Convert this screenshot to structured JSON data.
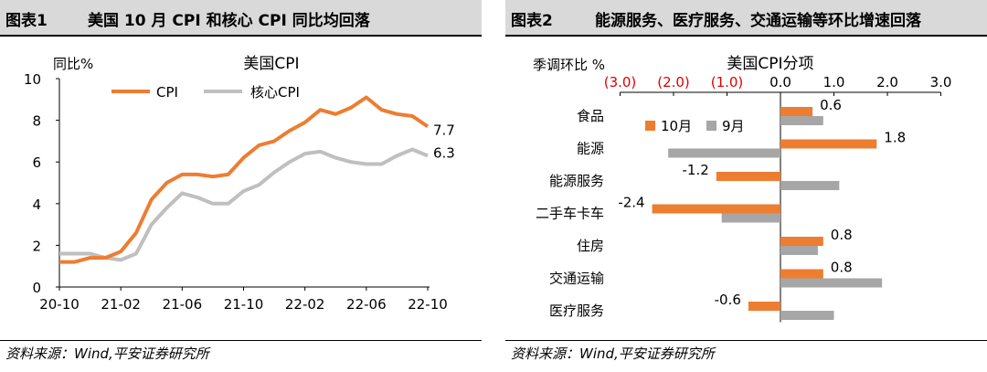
{
  "left": {
    "figure_num": "图表1",
    "title": "美国 10 月 CPI 和核心 CPI 同比均回落",
    "source": "资料来源：Wind,平安证券研究所"
  },
  "right": {
    "figure_num": "图表2",
    "title": "能源服务、医疗服务、交通运输等环比增速回落",
    "source": "资料来源：Wind,平安证券研究所"
  },
  "chart_data": [
    {
      "type": "line",
      "title": "美国CPI",
      "ylabel": "同比%",
      "xlabel": "",
      "ylim": [
        0,
        10
      ],
      "yticks": [
        0,
        2,
        4,
        6,
        8,
        10
      ],
      "xtick_labels": [
        "20-10",
        "21-02",
        "21-06",
        "21-10",
        "22-02",
        "22-06",
        "22-10"
      ],
      "xtick_indices": [
        0,
        4,
        8,
        12,
        16,
        20,
        24
      ],
      "grid": false,
      "legend_position": "top",
      "x": [
        "20-10",
        "20-11",
        "20-12",
        "21-01",
        "21-02",
        "21-03",
        "21-04",
        "21-05",
        "21-06",
        "21-07",
        "21-08",
        "21-09",
        "21-10",
        "21-11",
        "21-12",
        "22-01",
        "22-02",
        "22-03",
        "22-04",
        "22-05",
        "22-06",
        "22-07",
        "22-08",
        "22-09",
        "22-10"
      ],
      "series": [
        {
          "name": "CPI",
          "color": "#ed7d31",
          "end_label": "7.7",
          "values": [
            1.2,
            1.2,
            1.4,
            1.4,
            1.7,
            2.6,
            4.2,
            5.0,
            5.4,
            5.4,
            5.3,
            5.4,
            6.2,
            6.8,
            7.0,
            7.5,
            7.9,
            8.5,
            8.3,
            8.6,
            9.1,
            8.5,
            8.3,
            8.2,
            7.7
          ]
        },
        {
          "name": "核心CPI",
          "color": "#bfbfbf",
          "end_label": "6.3",
          "values": [
            1.6,
            1.6,
            1.6,
            1.4,
            1.3,
            1.6,
            3.0,
            3.8,
            4.5,
            4.3,
            4.0,
            4.0,
            4.6,
            4.9,
            5.5,
            6.0,
            6.4,
            6.5,
            6.2,
            6.0,
            5.9,
            5.9,
            6.3,
            6.6,
            6.3
          ]
        }
      ]
    },
    {
      "type": "bar",
      "orientation": "horizontal",
      "title": "美国CPI分项",
      "ylabel": "季调环比 %",
      "xlim": [
        -3.0,
        3.0
      ],
      "xtick_labels": [
        "(3.0)",
        "(2.0)",
        "(1.0)",
        "0.0",
        "1.0",
        "2.0",
        "3.0"
      ],
      "xtick_values": [
        -3,
        -2,
        -1,
        0,
        1,
        2,
        3
      ],
      "negative_tick_color": "#e00000",
      "grid": false,
      "legend_position": "top-left",
      "categories": [
        "食品",
        "能源",
        "能源服务",
        "二手车卡车",
        "住房",
        "交通运输",
        "医疗服务"
      ],
      "series": [
        {
          "name": "10月",
          "color": "#ed7d31",
          "values": [
            0.6,
            1.8,
            -1.2,
            -2.4,
            0.8,
            0.8,
            -0.6
          ],
          "data_labels": [
            "0.6",
            "1.8",
            "-1.2",
            "-2.4",
            "0.8",
            "0.8",
            "-0.6"
          ]
        },
        {
          "name": "9月",
          "color": "#a6a6a6",
          "values": [
            0.8,
            -2.1,
            1.1,
            -1.1,
            0.7,
            1.9,
            1.0
          ]
        }
      ]
    }
  ]
}
